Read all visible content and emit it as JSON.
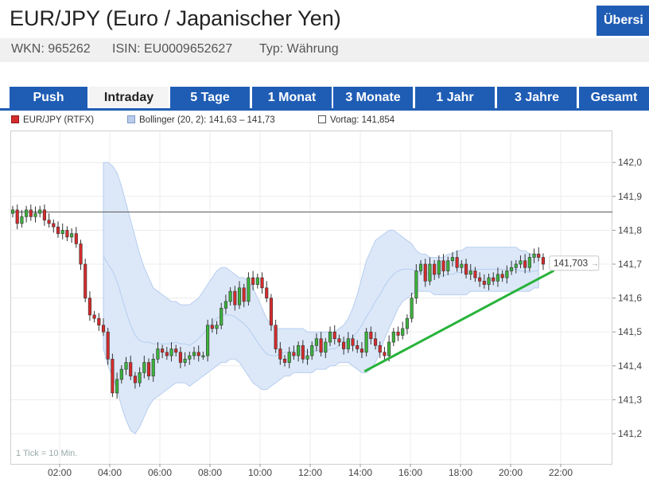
{
  "header": {
    "title": "EUR/JPY (Euro / Japanischer Yen)",
    "overview_label": "Übersi",
    "wkn": "WKN: 965262",
    "isin": "ISIN: EU0009652627",
    "typ": "Typ: Währung"
  },
  "tabs": [
    "Push",
    "Intraday",
    "5 Tage",
    "1 Monat",
    "3 Monate",
    "1 Jahr",
    "3 Jahre",
    "Gesamt"
  ],
  "active_tab": "Intraday",
  "legend": {
    "price": "EUR/JPY (RTFX)",
    "bollinger": "Bollinger (20, 2): 141,63 – 141,73",
    "prev_close": "Vortag: 141,854"
  },
  "colors": {
    "brand_blue": "#1f5db5",
    "candle_up": "#3cb33c",
    "candle_down": "#d62b2b",
    "bollinger_fill": "#dce8f8",
    "bollinger_line": "#b6cdef",
    "trend_line": "#27b33a"
  },
  "chart_data": {
    "type": "candlestick",
    "interval_note": "1 Tick = 10 Min.",
    "y_ticks": [
      "142,0",
      "141,9",
      "141,8",
      "141,7",
      "141,6",
      "141,5",
      "141,4",
      "141,3",
      "141,2"
    ],
    "ylim": [
      141.15,
      142.07
    ],
    "x_ticks": [
      "02:00",
      "04:00",
      "06:00",
      "08:00",
      "10:00",
      "12:00",
      "14:00",
      "16:00",
      "18:00",
      "20:00",
      "22:00"
    ],
    "xlim_hours": [
      0.83,
      23.9
    ],
    "reference_line": {
      "label": "Vortag",
      "value": 141.854
    },
    "last_price_label": "141,703",
    "closes": [
      141.86,
      141.82,
      141.84,
      141.86,
      141.84,
      141.85,
      141.86,
      141.83,
      141.82,
      141.81,
      141.79,
      141.8,
      141.78,
      141.79,
      141.76,
      141.7,
      141.6,
      141.55,
      141.54,
      141.52,
      141.5,
      141.42,
      141.32,
      141.36,
      141.39,
      141.41,
      141.37,
      141.35,
      141.38,
      141.41,
      141.37,
      141.42,
      141.45,
      141.44,
      141.43,
      141.45,
      141.44,
      141.41,
      141.42,
      141.43,
      141.44,
      141.43,
      141.43,
      141.52,
      141.51,
      141.52,
      141.57,
      141.59,
      141.62,
      141.58,
      141.63,
      141.59,
      141.66,
      141.64,
      141.66,
      141.63,
      141.6,
      141.52,
      141.45,
      141.42,
      141.41,
      141.44,
      141.43,
      141.46,
      141.42,
      141.43,
      141.46,
      141.48,
      141.44,
      141.47,
      141.5,
      141.48,
      141.47,
      141.45,
      141.48,
      141.46,
      141.45,
      141.44,
      141.5,
      141.48,
      141.46,
      141.44,
      141.43,
      141.47,
      141.5,
      141.49,
      141.51,
      141.54,
      141.6,
      141.68,
      141.7,
      141.65,
      141.7,
      141.67,
      141.71,
      141.68,
      141.71,
      141.72,
      141.69,
      141.7,
      141.67,
      141.68,
      141.66,
      141.65,
      141.64,
      141.66,
      141.65,
      141.67,
      141.66,
      141.68,
      141.69,
      141.7,
      141.71,
      141.69,
      141.72,
      141.73,
      141.72,
      141.7
    ],
    "bollinger": {
      "start_index": 20,
      "upper": [
        142.0,
        142.0,
        141.99,
        141.97,
        141.93,
        141.88,
        141.83,
        141.78,
        141.73,
        141.69,
        141.66,
        141.63,
        141.62,
        141.61,
        141.6,
        141.59,
        141.59,
        141.58,
        141.58,
        141.58,
        141.59,
        141.6,
        141.62,
        141.64,
        141.66,
        141.68,
        141.69,
        141.69,
        141.68,
        141.67,
        141.66,
        141.66,
        141.65,
        141.63,
        141.6,
        141.57,
        141.54,
        141.52,
        141.51,
        141.51,
        141.51,
        141.51,
        141.51,
        141.51,
        141.51,
        141.5,
        141.5,
        141.5,
        141.5,
        141.5,
        141.5,
        141.5,
        141.51,
        141.52,
        141.54,
        141.57,
        141.61,
        141.66,
        141.71,
        141.74,
        141.77,
        141.78,
        141.79,
        141.8,
        141.8,
        141.79,
        141.78,
        141.77,
        141.76,
        141.74,
        141.73,
        141.73,
        141.72,
        141.72,
        141.72,
        141.72,
        141.73,
        141.73,
        141.74,
        141.74,
        141.75,
        141.75,
        141.75,
        141.75,
        141.75,
        141.75,
        141.75,
        141.75,
        141.75,
        141.75,
        141.75,
        141.75,
        141.74,
        141.74,
        141.73,
        141.73,
        141.73
      ],
      "lower": [
        141.45,
        141.4,
        141.37,
        141.33,
        141.28,
        141.24,
        141.21,
        141.2,
        141.22,
        141.25,
        141.28,
        141.3,
        141.31,
        141.32,
        141.33,
        141.34,
        141.35,
        141.35,
        141.35,
        141.34,
        141.35,
        141.36,
        141.37,
        141.38,
        141.39,
        141.4,
        141.41,
        141.41,
        141.42,
        141.42,
        141.41,
        141.39,
        141.37,
        141.35,
        141.34,
        141.33,
        141.33,
        141.34,
        141.35,
        141.36,
        141.37,
        141.37,
        141.38,
        141.38,
        141.38,
        141.38,
        141.38,
        141.39,
        141.39,
        141.39,
        141.4,
        141.4,
        141.41,
        141.41,
        141.41,
        141.4,
        141.39,
        141.38,
        141.38,
        141.39,
        141.41,
        141.44,
        141.48,
        141.51,
        141.54,
        141.57,
        141.59,
        141.6,
        141.61,
        141.62,
        141.62,
        141.62,
        141.62,
        141.61,
        141.61,
        141.61,
        141.61,
        141.61,
        141.61,
        141.61,
        141.61,
        141.62,
        141.62,
        141.62,
        141.62,
        141.62,
        141.62,
        141.62,
        141.62,
        141.62,
        141.62,
        141.62,
        141.62,
        141.62,
        141.62,
        141.63,
        141.63
      ]
    },
    "annotation_trendline": {
      "from": {
        "hour": 14.2,
        "value": 141.385
      },
      "to": {
        "hour": 21.7,
        "value": 141.68
      }
    }
  }
}
